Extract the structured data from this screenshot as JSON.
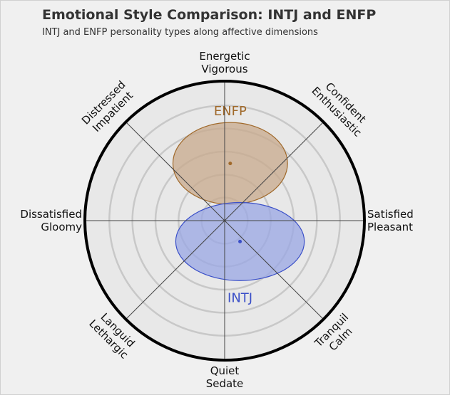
{
  "title": "Emotional Style Comparison: INTJ and ENFP",
  "subtitle": "INTJ and ENFP personality types along affective dimensions",
  "chart_data": {
    "type": "scatter",
    "title": "Emotional Style Comparison: INTJ and ENFP",
    "subtitle": "INTJ and ENFP personality types along affective dimensions",
    "grid": true,
    "axes": [
      {
        "name": "top",
        "line1": "Energetic",
        "line2": "Vigorous"
      },
      {
        "name": "top-right",
        "line1": "Confident",
        "line2": "Enthusiastic"
      },
      {
        "name": "right",
        "line1": "Satisfied",
        "line2": "Pleasant"
      },
      {
        "name": "bottom-right",
        "line1": "Tranquil",
        "line2": "Calm"
      },
      {
        "name": "bottom",
        "line1": "Quiet",
        "line2": "Sedate"
      },
      {
        "name": "bottom-left",
        "line1": "Languid",
        "line2": "Lethargic"
      },
      {
        "name": "left",
        "line1": "Dissatisfied",
        "line2": "Gloomy"
      },
      {
        "name": "top-left",
        "line1": "Distressed",
        "line2": "Impatient"
      }
    ],
    "range": [
      -1,
      1
    ],
    "series": [
      {
        "name": "ENFP",
        "x": 0.04,
        "y": 0.41,
        "rx": 0.41,
        "ry": 0.44,
        "color": "#a0692a",
        "fill": "#c8aa8c"
      },
      {
        "name": "INTJ",
        "x": 0.11,
        "y": -0.15,
        "rx": 0.46,
        "ry": 0.42,
        "color": "#3a4fc8",
        "fill": "#9aa7e4"
      }
    ],
    "colors": {
      "outer_ring": "#000000",
      "grid": "#c8c8c8",
      "spokes": "#444444"
    }
  }
}
